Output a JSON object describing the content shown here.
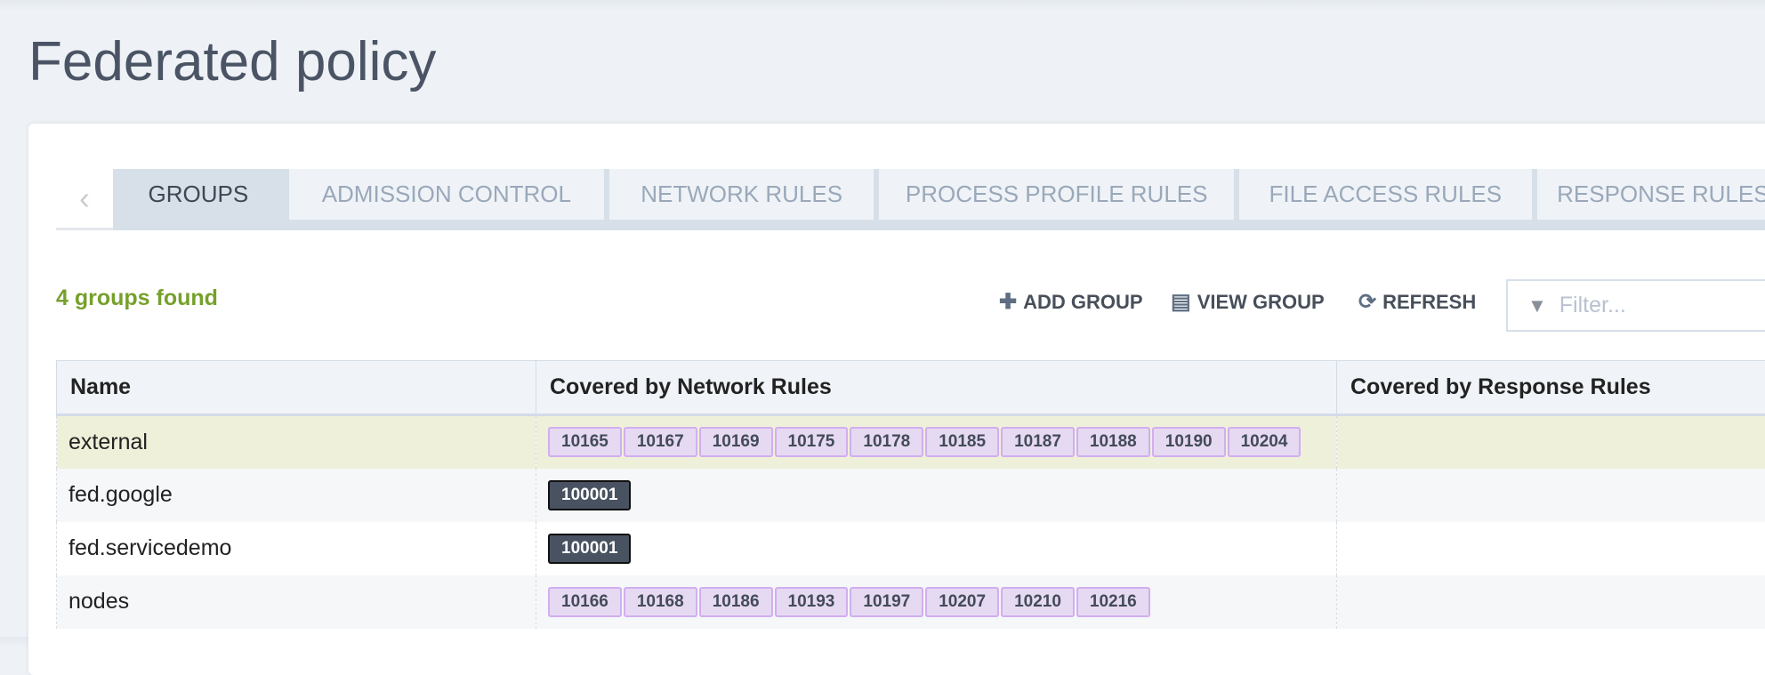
{
  "page": {
    "title": "Federated policy"
  },
  "tabs": [
    {
      "label": "GROUPS",
      "active": true
    },
    {
      "label": "ADMISSION CONTROL"
    },
    {
      "label": "NETWORK RULES"
    },
    {
      "label": "PROCESS PROFILE RULES"
    },
    {
      "label": "FILE ACCESS RULES"
    },
    {
      "label": "RESPONSE RULES"
    }
  ],
  "status": "4 groups found",
  "toolbar": {
    "add": "ADD GROUP",
    "view": "VIEW GROUP",
    "refresh": "REFRESH",
    "filter_placeholder": "Filter..."
  },
  "table": {
    "columns": [
      "Name",
      "Covered by Network Rules",
      "Covered by Response Rules"
    ],
    "rows": [
      {
        "name": "external",
        "network": [
          "10165",
          "10167",
          "10169",
          "10175",
          "10178",
          "10185",
          "10187",
          "10188",
          "10190",
          "10204"
        ],
        "style": "purple"
      },
      {
        "name": "fed.google",
        "network": [
          "100001"
        ],
        "style": "dark"
      },
      {
        "name": "fed.servicedemo",
        "network": [
          "100001"
        ],
        "style": "dark"
      },
      {
        "name": "nodes",
        "network": [
          "10166",
          "10168",
          "10186",
          "10193",
          "10197",
          "10207",
          "10210",
          "10216"
        ],
        "style": "purple"
      }
    ]
  }
}
